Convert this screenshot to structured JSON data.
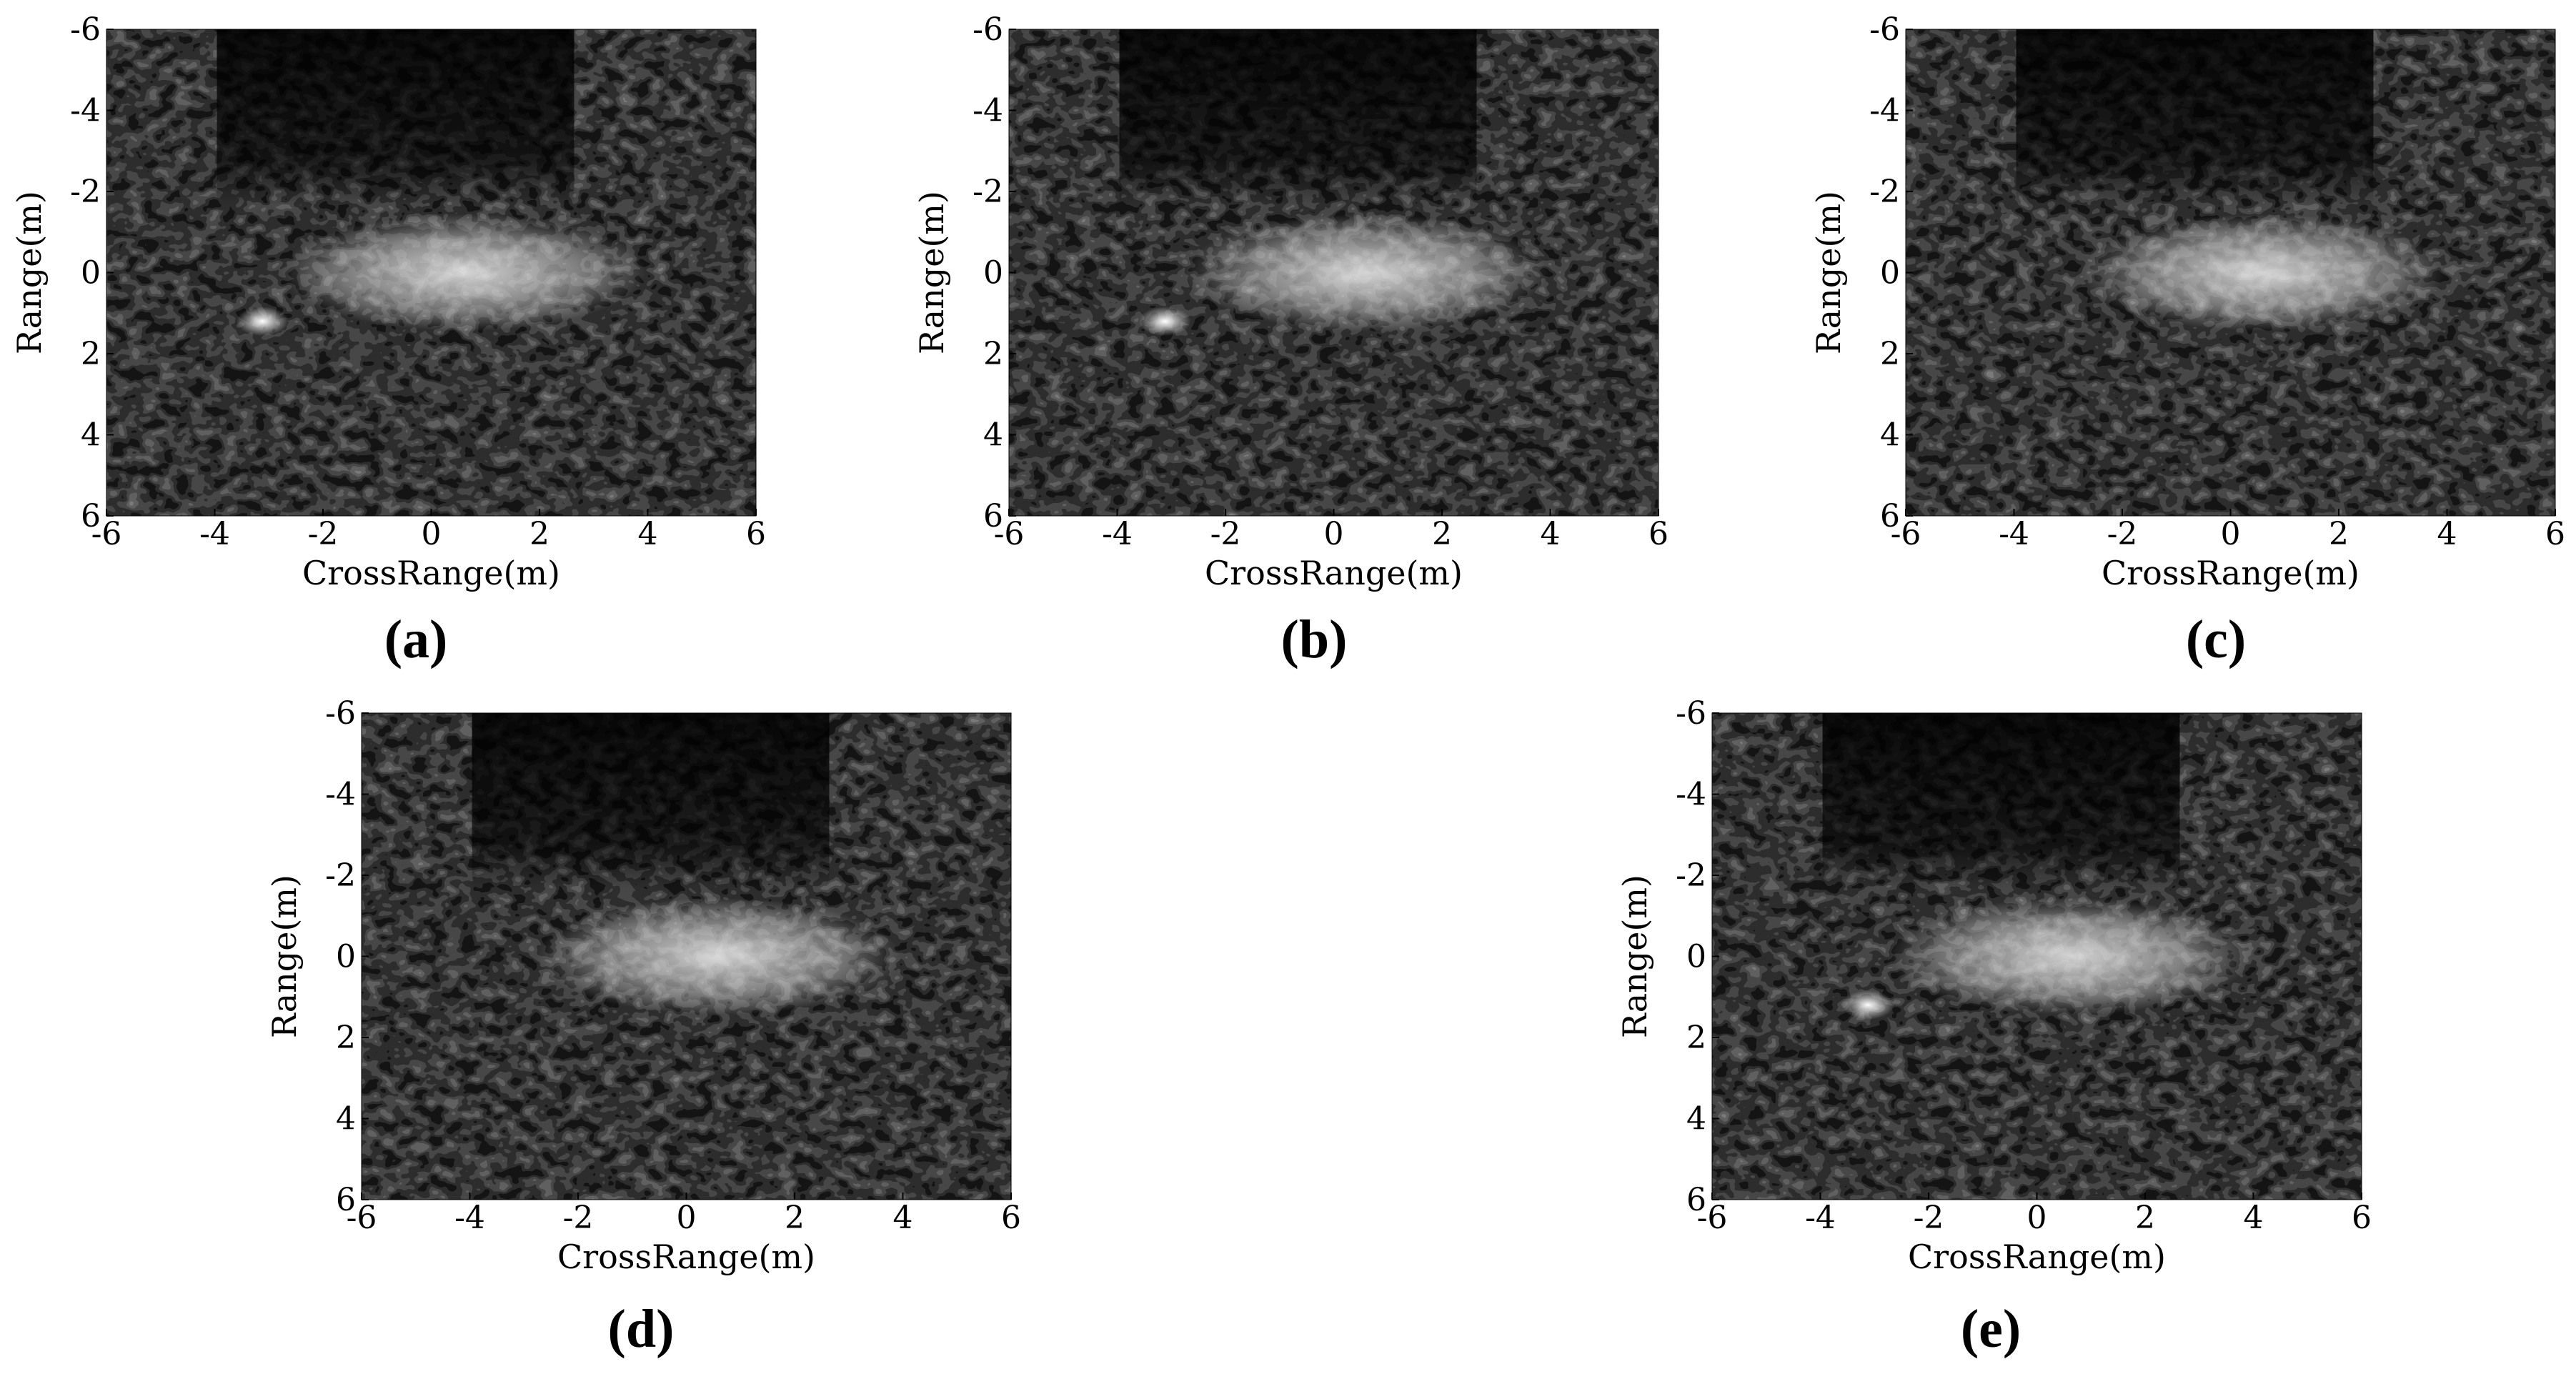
{
  "panels": [
    {
      "caption": "(a)",
      "xlabel": "CrossRange(m)",
      "ylabel": "Range(m)",
      "xlim": [
        -6,
        6
      ],
      "ylim": [
        -6,
        6
      ],
      "xticks": [
        -6,
        -4,
        -2,
        0,
        2,
        4,
        6
      ],
      "yticks": [
        -6,
        -4,
        -2,
        0,
        2,
        4,
        6
      ]
    },
    {
      "caption": "(b)",
      "xlabel": "CrossRange(m)",
      "ylabel": "Range(m)",
      "xlim": [
        -6,
        6
      ],
      "ylim": [
        -6,
        6
      ],
      "xticks": [
        -6,
        -4,
        -2,
        0,
        2,
        4,
        6
      ],
      "yticks": [
        -6,
        -4,
        -2,
        0,
        2,
        4,
        6
      ]
    },
    {
      "caption": "(c)",
      "xlabel": "CrossRange(m)",
      "ylabel": "Range(m)",
      "xlim": [
        -6,
        6
      ],
      "ylim": [
        -6,
        6
      ],
      "xticks": [
        -6,
        -4,
        -2,
        0,
        2,
        4,
        6
      ],
      "yticks": [
        -6,
        -4,
        -2,
        0,
        2,
        4,
        6
      ]
    },
    {
      "caption": "(d)",
      "xlabel": "CrossRange(m)",
      "ylabel": "Range(m)",
      "xlim": [
        -6,
        6
      ],
      "ylim": [
        -6,
        6
      ],
      "xticks": [
        -6,
        -4,
        -2,
        0,
        2,
        4,
        6
      ],
      "yticks": [
        -6,
        -4,
        -2,
        0,
        2,
        4,
        6
      ]
    },
    {
      "caption": "(e)",
      "xlabel": "CrossRange(m)",
      "ylabel": "Range(m)",
      "xlim": [
        -6,
        6
      ],
      "ylim": [
        -6,
        6
      ],
      "xticks": [
        -6,
        -4,
        -2,
        0,
        2,
        4,
        6
      ],
      "yticks": [
        -6,
        -4,
        -2,
        0,
        2,
        4,
        6
      ]
    }
  ]
}
